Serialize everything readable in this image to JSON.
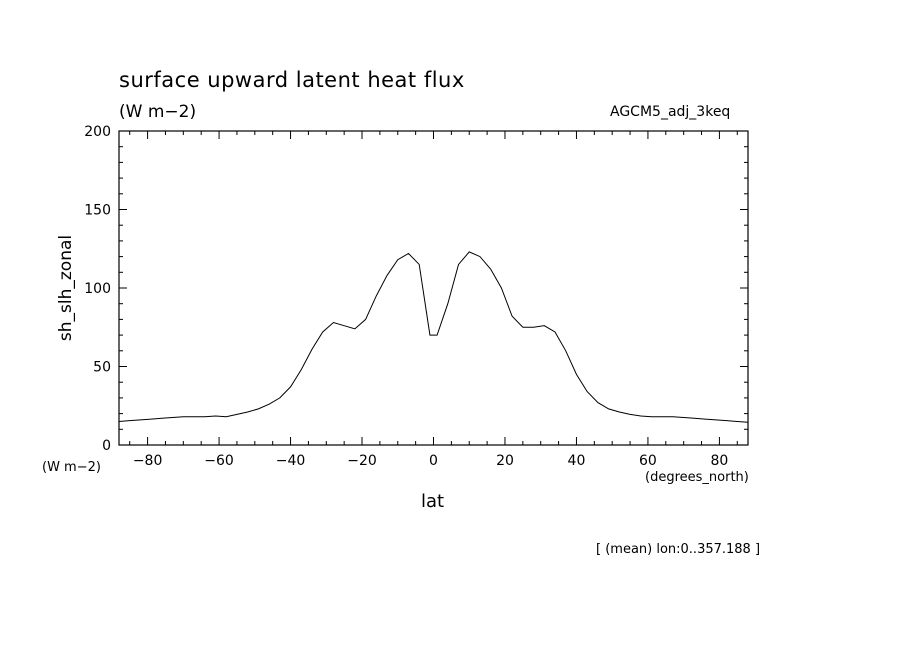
{
  "header": {
    "title": "surface upward latent heat flux",
    "units": "(W m−2)",
    "run_label": "AGCM5_adj_3keq"
  },
  "axes": {
    "y_label": "sh_slh_zonal",
    "y_units": "(W m−2)",
    "x_label": "lat",
    "x_units": "(degrees_north)"
  },
  "footnote": "[ (mean) lon:0..357.188 ]",
  "chart_data": {
    "type": "line",
    "title": "surface upward latent heat flux",
    "xlabel": "lat",
    "ylabel": "sh_slh_zonal",
    "xlim": [
      -88,
      88
    ],
    "ylim": [
      0,
      200
    ],
    "x_ticks": [
      -80,
      -60,
      -40,
      -20,
      0,
      20,
      40,
      60,
      80
    ],
    "x_tick_labels": [
      "−80",
      "−60",
      "−40",
      "−20",
      "0",
      "20",
      "40",
      "60",
      "80"
    ],
    "y_ticks": [
      0,
      50,
      100,
      150,
      200
    ],
    "y_tick_labels": [
      "0",
      "50",
      "100",
      "150",
      "200"
    ],
    "grid": false,
    "series": [
      {
        "x": [
          -88,
          -85,
          -82,
          -79,
          -76,
          -73,
          -70,
          -67,
          -64,
          -61,
          -58,
          -55,
          -52,
          -49,
          -46,
          -43,
          -40,
          -37,
          -34,
          -31,
          -28,
          -25,
          -22,
          -19,
          -16,
          -13,
          -10,
          -7,
          -4,
          -1,
          1,
          4,
          7,
          10,
          13,
          16,
          19,
          22,
          25,
          28,
          31,
          34,
          37,
          40,
          43,
          46,
          49,
          52,
          55,
          58,
          61,
          64,
          67,
          70,
          73,
          76,
          79,
          82,
          85,
          88
        ],
        "y": [
          15,
          15.5,
          16,
          16.5,
          17,
          17.5,
          18,
          18,
          18,
          18.5,
          18,
          19.5,
          21,
          23,
          26,
          30,
          37,
          48,
          61,
          72,
          78,
          76,
          74,
          80,
          95,
          108,
          118,
          122,
          115,
          70,
          70,
          90,
          115,
          123,
          120,
          112,
          100,
          82,
          75,
          75,
          76,
          72,
          60,
          45,
          34,
          27,
          23,
          21,
          19.5,
          18.5,
          18,
          18,
          18,
          17.5,
          17,
          16.5,
          16,
          15.5,
          15,
          14.5
        ]
      }
    ]
  }
}
